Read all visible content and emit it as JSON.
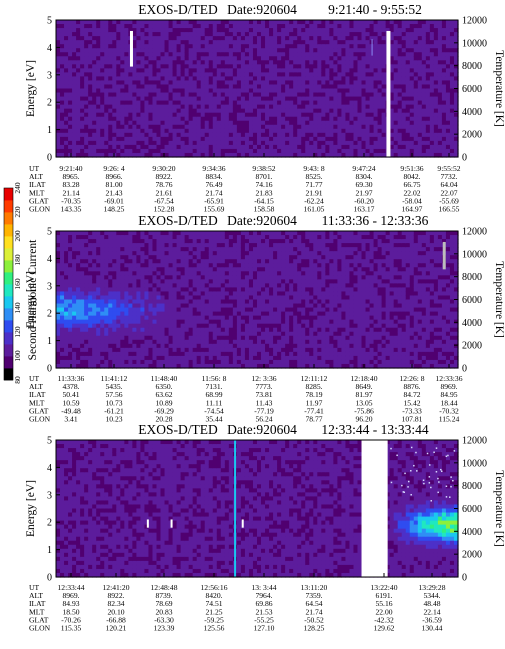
{
  "chart_data": [
    {
      "type": "heatmap",
      "title": "EXOS-D/TED",
      "date": "Date:920604",
      "time_range": "9:21:40 - 9:55:52",
      "ylabel": "Energy [eV]",
      "y2label": "Temperature [K]",
      "ylim": [
        0,
        5
      ],
      "y2lim": [
        0,
        12000
      ],
      "yticks": [
        "0",
        "1",
        "2",
        "3",
        "4",
        "5"
      ],
      "y2ticks": [
        "0",
        "2000",
        "4000",
        "6000",
        "8000",
        "10000",
        "12000"
      ],
      "xticks": [
        "9:21:40",
        "9:26: 4",
        "9:30:20",
        "9:34:36",
        "9:38:52",
        "9:43: 8",
        "9:47:24",
        "9:51:36",
        "9:55:52"
      ],
      "dominant_level": "purple (about 100-110)",
      "features": [
        {
          "kind": "white streak",
          "near": "9:26:4",
          "energy_range": [
            3.3,
            4.6
          ]
        },
        {
          "kind": "white streak",
          "near": "9:51:36",
          "energy_range": [
            0,
            4.6
          ]
        }
      ],
      "orbit_table": {
        "labels": [
          "UT",
          "ALT",
          "ILAT",
          "MLT",
          "GLAT",
          "GLON"
        ],
        "rows": [
          [
            "9:21:40",
            "9:26: 4",
            "9:30:20",
            "9:34:36",
            "9:38:52",
            "9:43: 8",
            "9:47:24",
            "9:51:36",
            "9:55:52"
          ],
          [
            "8965.",
            "8966.",
            "8922.",
            "8834.",
            "8701.",
            "8525.",
            "8304.",
            "8042.",
            "7732."
          ],
          [
            "83.28",
            "81.00",
            "78.76",
            "76.49",
            "74.16",
            "71.77",
            "69.30",
            "66.75",
            "64.04"
          ],
          [
            "21.14",
            "21.43",
            "21.61",
            "21.74",
            "21.83",
            "21.91",
            "21.97",
            "22.02",
            "22.07"
          ],
          [
            "-70.35",
            "-69.01",
            "-67.54",
            "-65.91",
            "-64.15",
            "-62.24",
            "-60.20",
            "-58.04",
            "-55.69"
          ],
          [
            "143.35",
            "148.25",
            "152.28",
            "155.69",
            "158.58",
            "161.05",
            "163.17",
            "164.97",
            "166.55"
          ]
        ]
      }
    },
    {
      "type": "heatmap",
      "title": "EXOS-D/TED",
      "date": "Date:920604",
      "time_range": "11:33:36 - 12:33:36",
      "ylabel": "Energy [eV]",
      "y2label": "Temperature [K]",
      "ylim": [
        0,
        5
      ],
      "y2lim": [
        0,
        12000
      ],
      "yticks": [
        "0",
        "1",
        "2",
        "3",
        "4",
        "5"
      ],
      "y2ticks": [
        "0",
        "2000",
        "4000",
        "6000",
        "8000",
        "10000",
        "12000"
      ],
      "xticks": [
        "11:33:36",
        "11:41:12",
        "11:48:40",
        "11:56: 8",
        "12: 3:36",
        "12:11:12",
        "12:18:40",
        "12:26: 8",
        "12:33:36"
      ],
      "dominant_level": "purple (about 100-110)",
      "features": [
        {
          "kind": "enhanced band (blue)",
          "time_span": [
            "11:33:36",
            "11:48:40"
          ],
          "energy_range": [
            1.2,
            3.0
          ],
          "peak_level": "about 140-150"
        },
        {
          "kind": "grey streak",
          "near": "12:33:36",
          "energy_range": [
            3.6,
            4.6
          ]
        }
      ],
      "colorbar": {
        "label": "Second Harmonic Current",
        "range": [
          80,
          240
        ],
        "ticks": [
          "80",
          "100",
          "120",
          "140",
          "160",
          "180",
          "200",
          "220",
          "240"
        ],
        "colors": [
          "#000000",
          "#500070",
          "#5c1c9c",
          "#4c30c8",
          "#2f4cf0",
          "#2f8ef5",
          "#1ac8f0",
          "#20e8c0",
          "#30f080",
          "#8cf03c",
          "#dcf038",
          "#ffe020",
          "#ffb400",
          "#ff7a00",
          "#ff3c00",
          "#e80000"
        ]
      },
      "orbit_table": {
        "labels": [
          "UT",
          "ALT",
          "ILAT",
          "MLT",
          "GLAT",
          "GLON"
        ],
        "rows": [
          [
            "11:33:36",
            "11:41:12",
            "11:48:40",
            "11:56: 8",
            "12: 3:36",
            "12:11:12",
            "12:18:40",
            "12:26: 8",
            "12:33:36"
          ],
          [
            "4378.",
            "5435.",
            "6350.",
            "7131.",
            "7773.",
            "8285.",
            "8649.",
            "8876.",
            "8969."
          ],
          [
            "50.41",
            "57.56",
            "63.62",
            "68.99",
            "73.81",
            "78.19",
            "81.97",
            "84.72",
            "84.95"
          ],
          [
            "10.59",
            "10.73",
            "10.89",
            "11.11",
            "11.43",
            "11.97",
            "13.05",
            "15.42",
            "18.44"
          ],
          [
            "-49.48",
            "-61.21",
            "-69.29",
            "-74.54",
            "-77.19",
            "-77.41",
            "-75.86",
            "-73.33",
            "-70.32"
          ],
          [
            "3.41",
            "10.23",
            "20.28",
            "35.44",
            "56.24",
            "78.77",
            "96.20",
            "107.81",
            "115.24"
          ]
        ]
      }
    },
    {
      "type": "heatmap",
      "title": "EXOS-D/TED",
      "date": "Date:920604",
      "time_range": "12:33:44 - 13:33:44",
      "ylabel": "Energy [eV]",
      "y2label": "Temperature [K]",
      "ylim": [
        0,
        5
      ],
      "y2lim": [
        0,
        12000
      ],
      "yticks": [
        "0",
        "1",
        "2",
        "3",
        "4",
        "5"
      ],
      "y2ticks": [
        "0",
        "2000",
        "4000",
        "6000",
        "8000",
        "10000",
        "12000"
      ],
      "xticks": [
        "12:33:44",
        "12:41:20",
        "12:48:48",
        "12:56:16",
        "13: 3:44",
        "13:11:20",
        "13:22:40",
        "13:29:28"
      ],
      "dominant_level": "purple (about 100-110)",
      "features": [
        {
          "kind": "white streak",
          "near": "12:41:20",
          "energy_range": [
            1.8,
            2.1
          ]
        },
        {
          "kind": "white streak",
          "near": "12:48:48",
          "energy_range": [
            1.8,
            2.1
          ]
        },
        {
          "kind": "cyan line",
          "near": "12:56:16",
          "energy_range": [
            0,
            5
          ]
        },
        {
          "kind": "white streak",
          "near": "12:56:16",
          "energy_range": [
            1.8,
            2.1
          ]
        },
        {
          "kind": "data gap",
          "time_span": [
            "13:15:00",
            "13:19:00"
          ]
        },
        {
          "kind": "enhanced band (blue-cyan)",
          "time_span": [
            "13:19:00",
            "13:33:44"
          ],
          "energy_range": [
            1.2,
            2.6
          ],
          "peak_level": "about 180"
        }
      ],
      "orbit_table": {
        "labels": [
          "UT",
          "ALT",
          "ILAT",
          "MLT",
          "GLAT",
          "GLON"
        ],
        "rows": [
          [
            "12:33:44",
            "12:41:20",
            "12:48:48",
            "12:56:16",
            "13: 3:44",
            "13:11:20",
            "13:22:40",
            "13:29:28"
          ],
          [
            "8969.",
            "8922.",
            "8739.",
            "8420.",
            "7964.",
            "7359.",
            "6191.",
            "5344."
          ],
          [
            "84.93",
            "82.34",
            "78.69",
            "74.51",
            "69.86",
            "64.54",
            "55.16",
            "48.48"
          ],
          [
            "18.50",
            "20.10",
            "20.83",
            "21.25",
            "21.53",
            "21.74",
            "22.00",
            "22.14"
          ],
          [
            "-70.26",
            "-66.88",
            "-63.30",
            "-59.25",
            "-55.25",
            "-50.52",
            "-42.32",
            "-36.59"
          ],
          [
            "115.35",
            "120.21",
            "123.39",
            "125.56",
            "127.10",
            "128.25",
            "129.62",
            "130.44"
          ]
        ]
      }
    }
  ]
}
